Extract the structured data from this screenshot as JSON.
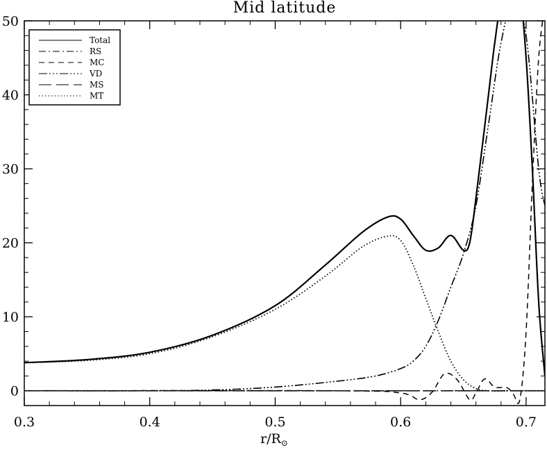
{
  "chart_data": {
    "type": "line",
    "title": "Mid latitude",
    "xlabel_main": "r/R",
    "xlabel_sub": "⊙",
    "ylabel": "",
    "xlim": [
      0.3,
      0.715
    ],
    "ylim": [
      -2,
      50
    ],
    "x_ticks": [
      0.3,
      0.4,
      0.5,
      0.6,
      0.7
    ],
    "x_tick_labels": [
      "0.3",
      "0.4",
      "0.5",
      "0.6",
      "0.7"
    ],
    "y_ticks": [
      0,
      10,
      20,
      30,
      40,
      50
    ],
    "y_tick_labels": [
      "0",
      "10",
      "20",
      "30",
      "40",
      "50"
    ],
    "grid": false,
    "legend_position": "top-left",
    "series": [
      {
        "name": "Total",
        "dash": "solid",
        "width": 2.2,
        "x": [
          0.3,
          0.35,
          0.4,
          0.45,
          0.5,
          0.54,
          0.57,
          0.59,
          0.6,
          0.61,
          0.62,
          0.63,
          0.64,
          0.65,
          0.655,
          0.66,
          0.67,
          0.675,
          0.68,
          0.69,
          0.695,
          0.7,
          0.705,
          0.71,
          0.715
        ],
        "y": [
          3.8,
          4.2,
          5.2,
          7.5,
          11.5,
          17.0,
          21.5,
          23.5,
          23.2,
          21.0,
          19.0,
          19.3,
          21.0,
          19.0,
          20.0,
          26.0,
          40.0,
          47.0,
          52.0,
          55.0,
          54.0,
          45.0,
          30.0,
          12.0,
          2.0
        ]
      },
      {
        "name": "RS",
        "dash": "dashdot",
        "width": 1.3,
        "x": [
          0.3,
          0.5,
          0.6,
          0.65,
          0.7,
          0.715
        ],
        "y": [
          0,
          0,
          0,
          0,
          0,
          0
        ]
      },
      {
        "name": "MC",
        "dash": "dashed",
        "width": 1.5,
        "x": [
          0.3,
          0.55,
          0.6,
          0.615,
          0.625,
          0.635,
          0.645,
          0.655,
          0.66,
          0.667,
          0.675,
          0.685,
          0.69,
          0.695,
          0.7,
          0.705,
          0.71,
          0.715
        ],
        "y": [
          0,
          0,
          -0.3,
          -1.2,
          -0.2,
          2.3,
          1.5,
          -1.2,
          -0.3,
          1.6,
          0.5,
          0.4,
          -0.5,
          -1.2,
          8.0,
          28.0,
          45.0,
          52.0
        ]
      },
      {
        "name": "VD",
        "dash": "dashdotdot",
        "width": 1.6,
        "x": [
          0.3,
          0.4,
          0.45,
          0.5,
          0.55,
          0.58,
          0.6,
          0.61,
          0.62,
          0.63,
          0.64,
          0.65,
          0.66,
          0.67,
          0.68,
          0.69,
          0.7,
          0.71,
          0.715
        ],
        "y": [
          0,
          0,
          0.1,
          0.5,
          1.3,
          2.0,
          3.0,
          4.0,
          6.0,
          9.5,
          14.0,
          18.5,
          25.0,
          36.0,
          47.0,
          53.0,
          48.0,
          30.0,
          25.0
        ]
      },
      {
        "name": "MS",
        "dash": "longdash",
        "width": 1.5,
        "x": [
          0.3,
          0.55,
          0.6,
          0.65,
          0.7,
          0.715
        ],
        "y": [
          0,
          0,
          0,
          0,
          0,
          0
        ]
      },
      {
        "name": "MT",
        "dash": "dotted",
        "width": 1.8,
        "x": [
          0.3,
          0.35,
          0.4,
          0.45,
          0.5,
          0.54,
          0.57,
          0.59,
          0.6,
          0.61,
          0.62,
          0.63,
          0.64,
          0.65,
          0.66,
          0.67,
          0.69,
          0.7,
          0.715
        ],
        "y": [
          3.8,
          4.1,
          5.0,
          7.3,
          11.0,
          15.5,
          19.5,
          20.9,
          20.3,
          17.0,
          12.5,
          8.0,
          4.0,
          1.5,
          0.3,
          0.0,
          0.0,
          0.0,
          0.0
        ]
      }
    ]
  }
}
